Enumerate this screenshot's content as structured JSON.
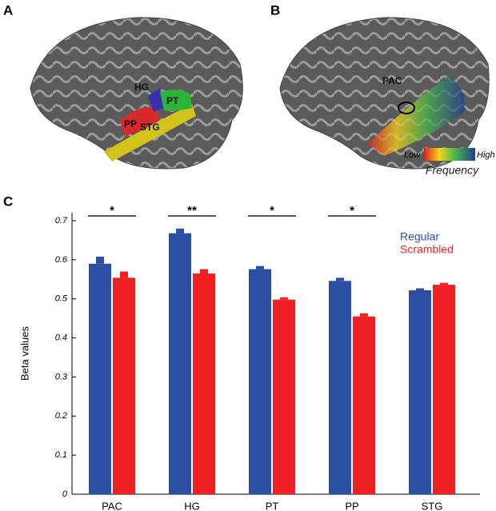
{
  "panel_a": {
    "label": "A",
    "regions": [
      "HG",
      "PT",
      "PP",
      "STG"
    ]
  },
  "panel_b": {
    "label": "B",
    "region": "PAC",
    "colorbar_low": "Low",
    "colorbar_high": "High",
    "colorbar_title": "Frequency"
  },
  "chart_data": {
    "type": "bar",
    "panel_label": "C",
    "y_label": "Beta values",
    "categories": [
      "PAC",
      "HG",
      "PT",
      "PP",
      "STG"
    ],
    "series": [
      {
        "name": "Regular",
        "color": "#2b50a3",
        "values": [
          0.59,
          0.668,
          0.576,
          0.546,
          0.522
        ],
        "errors": [
          0.018,
          0.012,
          0.008,
          0.008,
          0.005
        ]
      },
      {
        "name": "Scrambled",
        "color": "#ee2024",
        "values": [
          0.554,
          0.565,
          0.498,
          0.455,
          0.536
        ],
        "errors": [
          0.016,
          0.011,
          0.006,
          0.008,
          0.005
        ]
      }
    ],
    "significance": [
      "*",
      "**",
      "*",
      "*",
      null
    ],
    "ylim": [
      0,
      0.7
    ],
    "yticks": [
      0,
      0.1,
      0.2,
      0.3,
      0.4,
      0.5,
      0.6,
      0.7
    ],
    "legend": "upper right"
  }
}
